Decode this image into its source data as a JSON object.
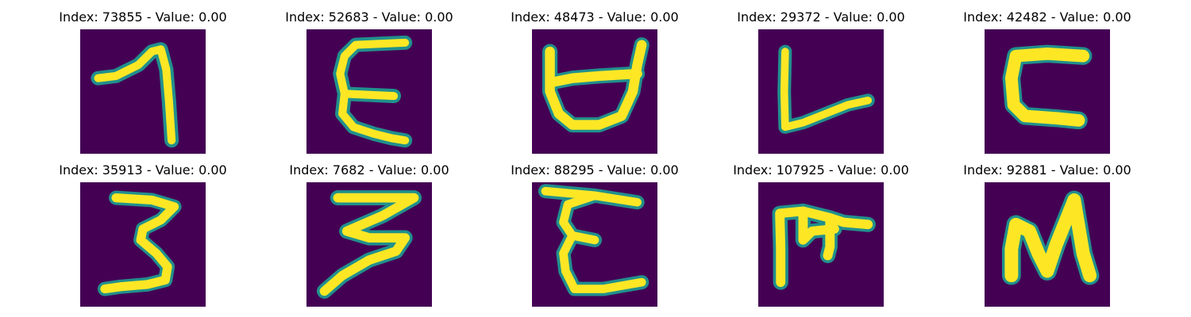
{
  "panels": [
    {
      "index": "Index: 73855",
      "value": "Value: 0.00",
      "glyph": "glyph-1"
    },
    {
      "index": "Index: 52683",
      "value": "Value: 0.00",
      "glyph": "glyph-2"
    },
    {
      "index": "Index: 48473",
      "value": "Value: 0.00",
      "glyph": "glyph-3"
    },
    {
      "index": "Index: 29372",
      "value": "Value: 0.00",
      "glyph": "glyph-4"
    },
    {
      "index": "Index: 42482",
      "value": "Value: 0.00",
      "glyph": "glyph-5"
    },
    {
      "index": "Index: 35913",
      "value": "Value: 0.00",
      "glyph": "glyph-6"
    },
    {
      "index": "Index: 7682",
      "value": "Value: 0.00",
      "glyph": "glyph-7"
    },
    {
      "index": "Index: 88295",
      "value": "Value: 0.00",
      "glyph": "glyph-8"
    },
    {
      "index": "Index: 107925",
      "value": "Value: 0.00",
      "glyph": "glyph-9"
    },
    {
      "index": "Index: 92881",
      "value": "Value: 0.00",
      "glyph": "glyph-10"
    }
  ],
  "colors": {
    "background": "#440154",
    "edge": "#21908d",
    "stroke": "#fde725"
  }
}
